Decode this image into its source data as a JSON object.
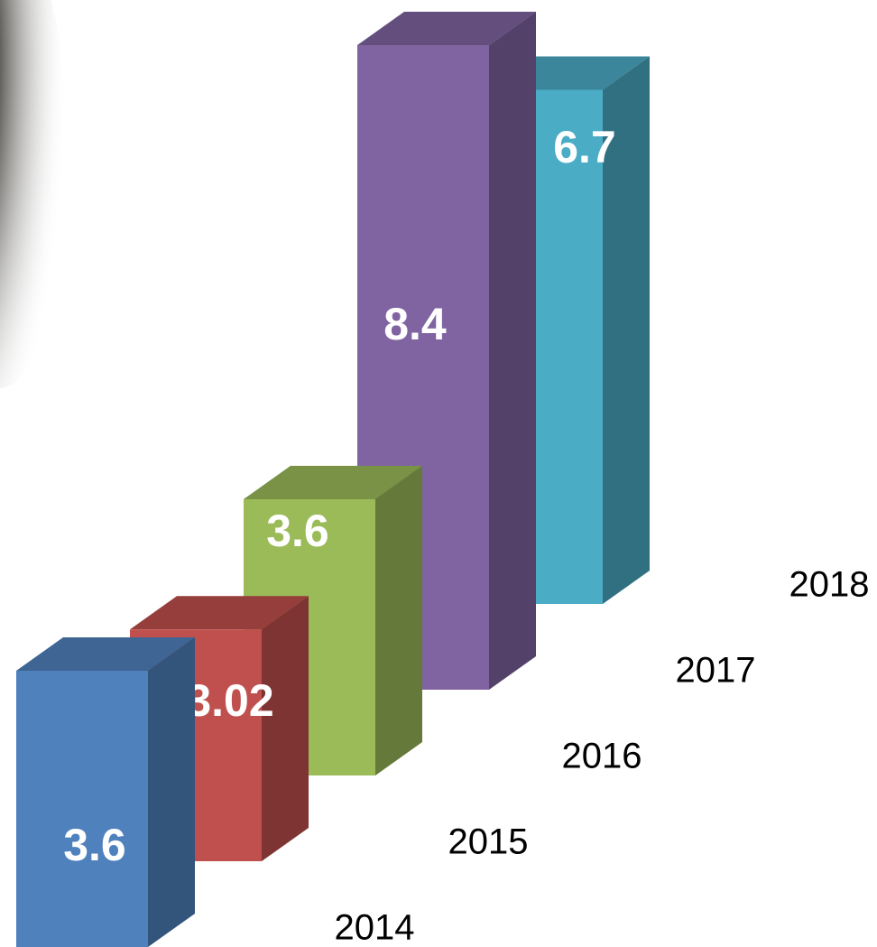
{
  "chart_data": {
    "type": "bar3d",
    "categories": [
      "2014",
      "2015",
      "2016",
      "2017",
      "2018"
    ],
    "values": [
      3.6,
      3.02,
      3.6,
      8.4,
      6.7
    ],
    "colors": [
      "#4f81bd",
      "#c0504d",
      "#9bbb59",
      "#8064a2",
      "#4bacc6"
    ]
  }
}
